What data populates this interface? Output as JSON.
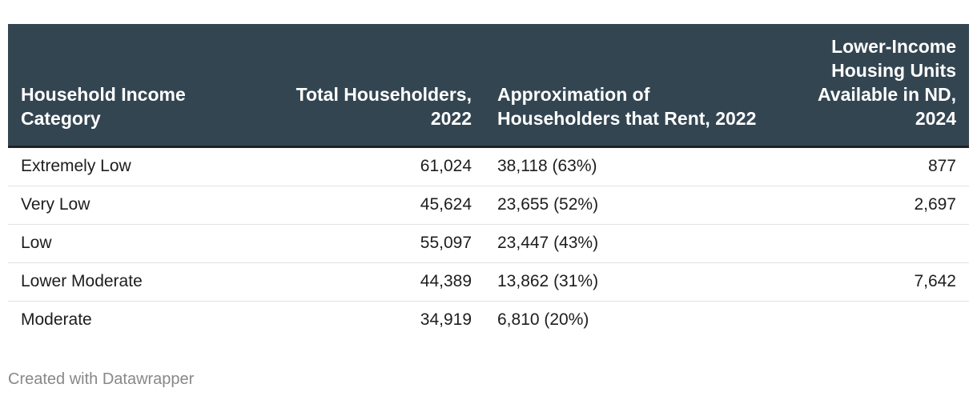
{
  "chart_data": {
    "type": "table",
    "columns": [
      "Household Income Category",
      "Total Householders, 2022",
      "Approximation of Householders that Rent, 2022",
      "Lower-Income Housing Units Available in ND, 2024"
    ],
    "rows": [
      {
        "category": "Extremely Low",
        "total": "61,024",
        "rent": "38,118 (63%)",
        "units": "877"
      },
      {
        "category": "Very Low",
        "total": "45,624",
        "rent": "23,655 (52%)",
        "units": "2,697"
      },
      {
        "category": "Low",
        "total": "55,097",
        "rent": "23,447 (43%)",
        "units": ""
      },
      {
        "category": "Lower Moderate",
        "total": "44,389",
        "rent": "13,862 (31%)",
        "units": "7,642"
      },
      {
        "category": "Moderate",
        "total": "34,919",
        "rent": "6,810 (20%)",
        "units": ""
      }
    ]
  },
  "colors": {
    "header_background": "#334551",
    "header_text": "#ffffff",
    "footer_text": "#888888"
  },
  "footer": {
    "credit": "Created with Datawrapper"
  }
}
